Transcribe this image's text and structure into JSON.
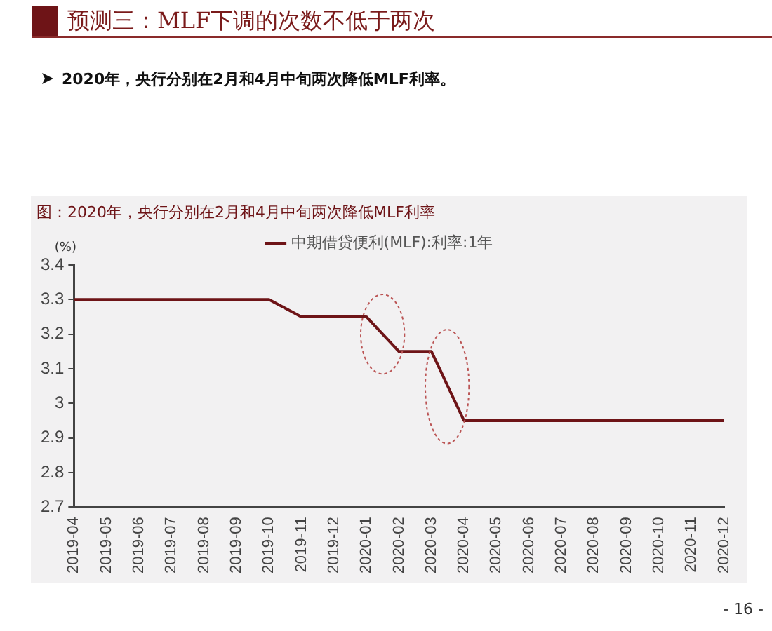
{
  "chart_data": {
    "type": "line",
    "title": "预测三：MLF下调的次数不低于两次",
    "subtitle": "2020年，央行分别在2月和4月中旬两次降低MLF利率。",
    "ylabel": "(%)",
    "annotations": [
      "图：2020年，央行分别在2月和4月中旬两次降低MLF利率",
      "- 16 -"
    ],
    "categories": [
      "2019-04",
      "2019-05",
      "2019-06",
      "2019-07",
      "2019-08",
      "2019-09",
      "2019-10",
      "2019-11",
      "2019-12",
      "2020-01",
      "2020-02",
      "2020-03",
      "2020-04",
      "2020-05",
      "2020-06",
      "2020-07",
      "2020-08",
      "2020-09",
      "2020-10",
      "2020-11",
      "2020-12"
    ],
    "series": [
      {
        "name": "中期借贷便利(MLF):利率:1年",
        "color": "#6e1417",
        "values": [
          3.3,
          3.3,
          3.3,
          3.3,
          3.3,
          3.3,
          3.3,
          3.25,
          3.25,
          3.25,
          3.15,
          3.15,
          2.95,
          2.95,
          2.95,
          2.95,
          2.95,
          2.95,
          2.95,
          2.95,
          2.95
        ]
      }
    ],
    "ylim": [
      2.7,
      3.4
    ],
    "yticks": [
      2.7,
      2.8,
      2.9,
      3,
      3.1,
      3.2,
      3.3,
      3.4
    ],
    "grid": false,
    "legend": "top",
    "marker": "none",
    "line_style": "solid"
  }
}
